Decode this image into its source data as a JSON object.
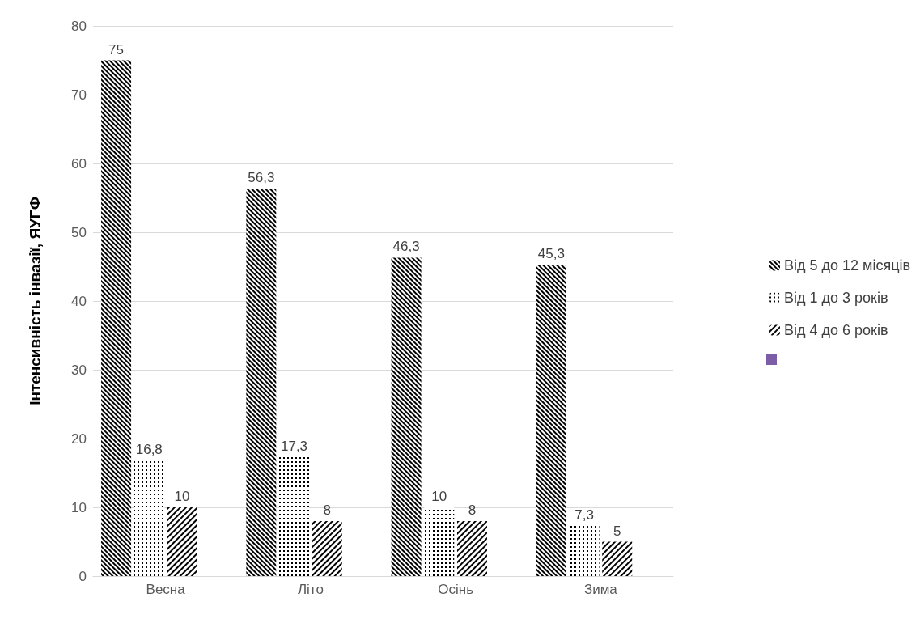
{
  "chart_data": {
    "type": "bar",
    "ylabel": "Інтенсивність інвазії, ЯУГФ",
    "categories": [
      "Весна",
      "Літо",
      "Осінь",
      "Зима"
    ],
    "series": [
      {
        "name": "Від 5 до 12 місяців",
        "color": "#000000",
        "values": [
          75,
          56.3,
          46.3,
          45.3
        ],
        "value_labels": [
          "75",
          "56,3",
          "46,3",
          "45,3"
        ]
      },
      {
        "name": "Від 1 до 3 років",
        "color": "#000000",
        "values": [
          16.8,
          17.3,
          10,
          7.3
        ],
        "value_labels": [
          "16,8",
          "17,3",
          "10",
          "7,3"
        ]
      },
      {
        "name": "Від 4 до 6 років",
        "color": "#000000",
        "values": [
          10,
          8,
          8,
          5
        ],
        "value_labels": [
          "10",
          "8",
          "8",
          "5"
        ]
      },
      {
        "color": "#7b5ea7",
        "values": [
          null,
          null,
          null,
          null
        ]
      }
    ],
    "ylim": [
      0,
      80
    ],
    "yticks": [
      0,
      10,
      20,
      30,
      40,
      50,
      60,
      70,
      80
    ],
    "grid": "y",
    "legend": "right"
  }
}
